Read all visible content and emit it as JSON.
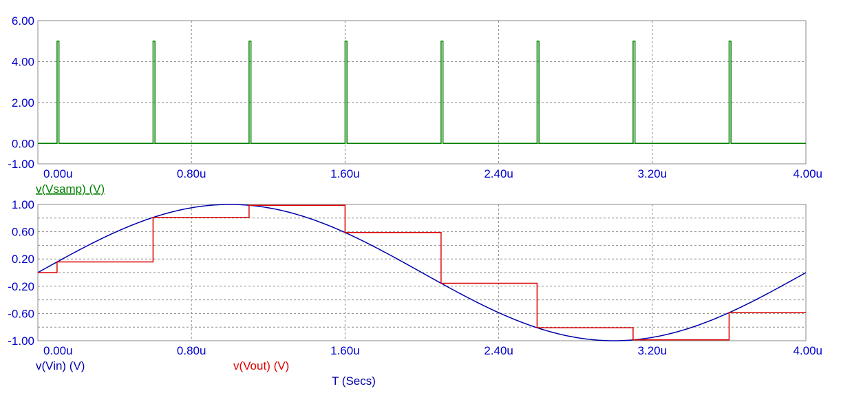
{
  "chart_data": [
    {
      "type": "line",
      "xlabel": "",
      "xlim": [
        0,
        4.0
      ],
      "ylim": [
        -1.0,
        6.0
      ],
      "x_ticks": [
        "0.00u",
        "0.80u",
        "1.60u",
        "2.40u",
        "3.20u",
        "4.00u"
      ],
      "y_ticks": [
        "6.00",
        "4.00",
        "2.00",
        "0.00",
        "-1.00"
      ],
      "grid": true,
      "series": [
        {
          "name": "v(Vsamp) (V)",
          "color": "#008000",
          "pulse_times": [
            0.1,
            0.6,
            1.1,
            1.6,
            2.1,
            2.6,
            3.1,
            3.6
          ],
          "pulse_width": 0.01,
          "high": 5.0,
          "low": 0.0
        }
      ]
    },
    {
      "type": "line",
      "xlabel": "T (Secs)",
      "xlim": [
        0,
        4.0
      ],
      "ylim": [
        -1.0,
        1.0
      ],
      "x_ticks": [
        "0.00u",
        "0.80u",
        "1.60u",
        "2.40u",
        "3.20u",
        "4.00u"
      ],
      "y_ticks": [
        "1.00",
        "0.60",
        "0.20",
        "-0.20",
        "-0.60",
        "-1.00"
      ],
      "grid": true,
      "series": [
        {
          "name": "v(Vin) (V)",
          "color": "#0000aa",
          "function": "sin",
          "amplitude": 1.0,
          "frequency_per_u": 0.25
        },
        {
          "name": "v(Vout) (V)",
          "color": "#dd0000",
          "steps": [
            {
              "t": 0.0,
              "v": 0.0
            },
            {
              "t": 0.1,
              "v": 0.156
            },
            {
              "t": 0.6,
              "v": 0.809
            },
            {
              "t": 1.1,
              "v": 0.988
            },
            {
              "t": 1.6,
              "v": 0.588
            },
            {
              "t": 2.1,
              "v": -0.156
            },
            {
              "t": 2.6,
              "v": -0.809
            },
            {
              "t": 3.1,
              "v": -0.988
            },
            {
              "t": 3.6,
              "v": -0.588
            },
            {
              "t": 4.0,
              "v": -0.588
            }
          ]
        }
      ]
    }
  ]
}
